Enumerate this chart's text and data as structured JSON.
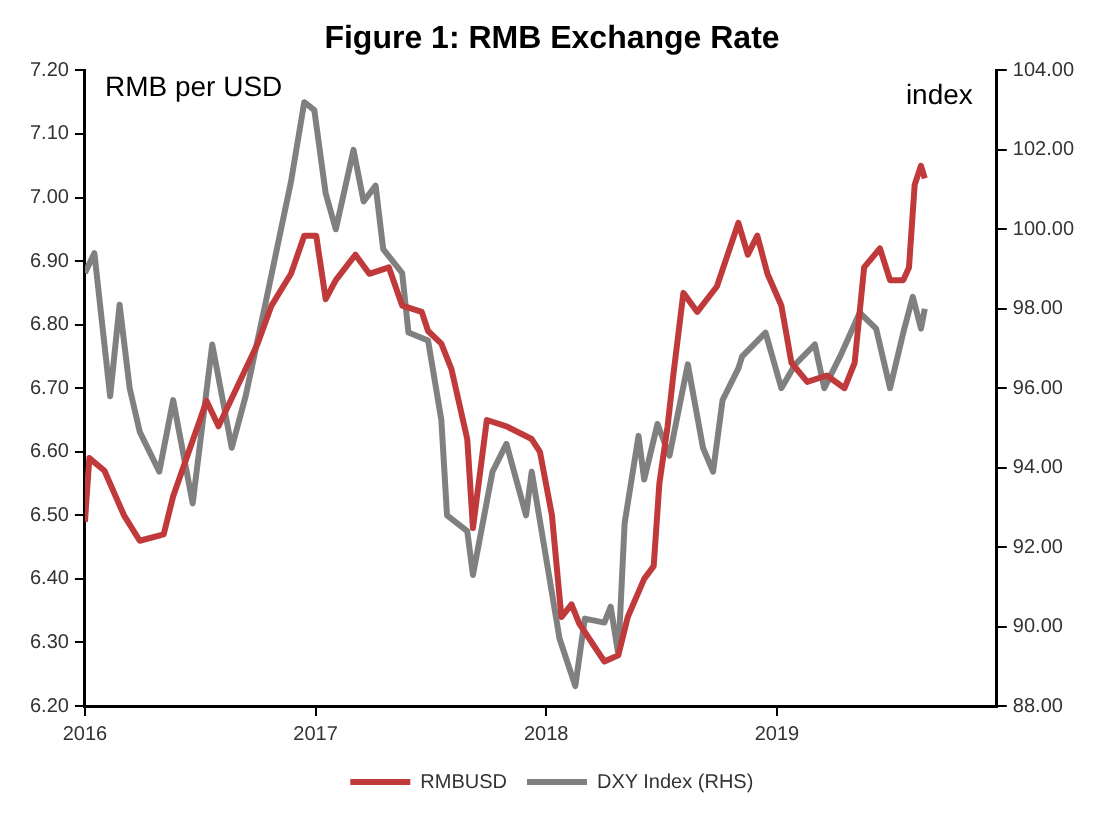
{
  "chart_data": {
    "type": "line",
    "title": "Figure 1: RMB Exchange Rate",
    "ylabel": "RMB per USD",
    "y2label": "index",
    "xlim": [
      "2016-01-01",
      "2019-12-15"
    ],
    "xticks": [
      "2016",
      "2017",
      "2018",
      "2019"
    ],
    "ylim": [
      6.2,
      7.2
    ],
    "yticks": [
      {
        "value": 6.2,
        "label": "6.20"
      },
      {
        "value": 6.3,
        "label": "6.30"
      },
      {
        "value": 6.4,
        "label": "6.40"
      },
      {
        "value": 6.5,
        "label": "6.50"
      },
      {
        "value": 6.6,
        "label": "6.60"
      },
      {
        "value": 6.7,
        "label": "6.70"
      },
      {
        "value": 6.8,
        "label": "6.80"
      },
      {
        "value": 6.9,
        "label": "6.90"
      },
      {
        "value": 7.0,
        "label": "7.00"
      },
      {
        "value": 7.1,
        "label": "7.10"
      },
      {
        "value": 7.2,
        "label": "7.20"
      }
    ],
    "y2lim": [
      88,
      104
    ],
    "y2ticks": [
      {
        "value": 88,
        "label": "88.00"
      },
      {
        "value": 90,
        "label": "90.00"
      },
      {
        "value": 92,
        "label": "92.00"
      },
      {
        "value": 94,
        "label": "94.00"
      },
      {
        "value": 96,
        "label": "96.00"
      },
      {
        "value": 98,
        "label": "98.00"
      },
      {
        "value": 100,
        "label": "100.00"
      },
      {
        "value": 102,
        "label": "102.00"
      },
      {
        "value": 104,
        "label": "104.00"
      }
    ],
    "legend": "bottom",
    "marker": "none",
    "line_style": "solid",
    "series": [
      {
        "name": "RMBUSD",
        "color": "#c0393b",
        "x": [
          "2016-01-01",
          "2016-01-08",
          "2016-02-01",
          "2016-03-03",
          "2016-03-28",
          "2016-05-05",
          "2016-05-20",
          "2016-07-12",
          "2016-07-31",
          "2016-10-01",
          "2016-10-23",
          "2016-11-23",
          "2016-12-14",
          "2017-01-02",
          "2017-01-17",
          "2017-02-02",
          "2017-03-05",
          "2017-03-27",
          "2017-04-27",
          "2017-05-18",
          "2017-06-18",
          "2017-06-28",
          "2017-07-19",
          "2017-08-04",
          "2017-08-29",
          "2017-09-07",
          "2017-09-29",
          "2017-10-30",
          "2017-12-09",
          "2017-12-22",
          "2018-01-10",
          "2018-01-25",
          "2018-02-10",
          "2018-02-22",
          "2018-04-03",
          "2018-04-25",
          "2018-05-10",
          "2018-06-05",
          "2018-06-20",
          "2018-06-29",
          "2018-07-12",
          "2018-07-21",
          "2018-08-06",
          "2018-08-28",
          "2018-09-28",
          "2018-11-01",
          "2018-11-16",
          "2018-12-01",
          "2018-12-17",
          "2019-01-08",
          "2019-01-24",
          "2019-02-18",
          "2019-03-21",
          "2019-04-18",
          "2019-05-04",
          "2019-05-19",
          "2019-06-13",
          "2019-06-29",
          "2019-07-20",
          "2019-07-29",
          "2019-08-07",
          "2019-08-17",
          "2019-08-23"
        ],
        "values": [
          6.49,
          6.59,
          6.57,
          6.5,
          6.46,
          6.47,
          6.53,
          6.68,
          6.64,
          6.77,
          6.83,
          6.88,
          6.94,
          6.94,
          6.84,
          6.87,
          6.91,
          6.88,
          6.89,
          6.83,
          6.82,
          6.79,
          6.77,
          6.73,
          6.62,
          6.48,
          6.65,
          6.64,
          6.62,
          6.6,
          6.5,
          6.34,
          6.36,
          6.33,
          6.27,
          6.28,
          6.34,
          6.4,
          6.42,
          6.55,
          6.64,
          6.72,
          6.85,
          6.82,
          6.86,
          6.96,
          6.91,
          6.94,
          6.88,
          6.83,
          6.74,
          6.71,
          6.72,
          6.7,
          6.74,
          6.89,
          6.92,
          6.87,
          6.87,
          6.89,
          7.02,
          7.05,
          7.03
        ]
      },
      {
        "name": "DXY Index (RHS)",
        "color": "#808080",
        "axis": "y2",
        "x": [
          "2016-01-01",
          "2016-01-16",
          "2016-01-25",
          "2016-02-10",
          "2016-02-25",
          "2016-03-12",
          "2016-03-28",
          "2016-04-28",
          "2016-05-20",
          "2016-06-20",
          "2016-07-21",
          "2016-08-21",
          "2016-09-12",
          "2016-10-13",
          "2016-11-23",
          "2016-12-14",
          "2016-12-30",
          "2017-01-17",
          "2017-02-02",
          "2017-03-02",
          "2017-03-18",
          "2017-04-06",
          "2017-04-18",
          "2017-05-18",
          "2017-05-28",
          "2017-06-28",
          "2017-07-19",
          "2017-07-28",
          "2017-08-29",
          "2017-09-07",
          "2017-10-08",
          "2017-10-30",
          "2017-11-30",
          "2017-12-09",
          "2018-01-22",
          "2018-02-16",
          "2018-03-03",
          "2018-04-03",
          "2018-04-13",
          "2018-04-25",
          "2018-05-05",
          "2018-05-27",
          "2018-06-05",
          "2018-06-26",
          "2018-07-15",
          "2018-08-13",
          "2018-09-06",
          "2018-09-22",
          "2018-10-07",
          "2018-11-01",
          "2018-11-07",
          "2018-12-14",
          "2019-01-08",
          "2019-01-30",
          "2019-03-02",
          "2019-03-17",
          "2019-04-11",
          "2019-05-12",
          "2019-06-07",
          "2019-06-29",
          "2019-07-20",
          "2019-08-04",
          "2019-08-17",
          "2019-08-23"
        ],
        "values": [
          98.9,
          99.4,
          98.1,
          95.8,
          98.1,
          96,
          94.9,
          93.9,
          95.7,
          93.1,
          97.1,
          94.5,
          95.8,
          98.1,
          101.2,
          103.2,
          103,
          100.9,
          100,
          102,
          100.7,
          101.1,
          99.5,
          98.9,
          97.4,
          97.2,
          95.2,
          92.8,
          92.4,
          91.3,
          93.9,
          94.6,
          92.8,
          93.9,
          89.7,
          88.5,
          90.2,
          90.1,
          90.5,
          89.3,
          92.6,
          94.8,
          93.7,
          95.1,
          94.3,
          96.6,
          94.5,
          93.9,
          95.7,
          96.5,
          96.8,
          97.4,
          96,
          96.6,
          97.1,
          96,
          96.8,
          97.9,
          97.5,
          96,
          97.4,
          98.3,
          97.5,
          98
        ]
      }
    ]
  }
}
